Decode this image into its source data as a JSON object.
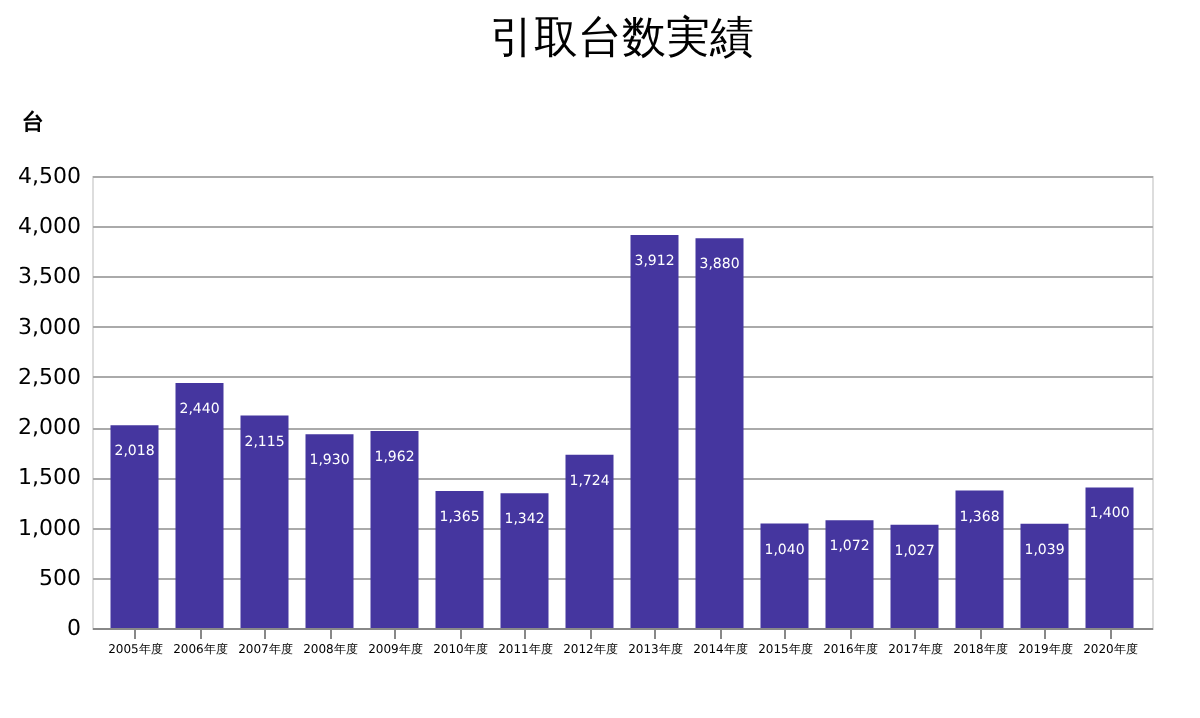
{
  "chart_data": {
    "type": "bar",
    "title": "引取台数実績",
    "ylabel": "台",
    "categories": [
      "2005年度",
      "2006年度",
      "2007年度",
      "2008年度",
      "2009年度",
      "2010年度",
      "2011年度",
      "2012年度",
      "2013年度",
      "2014年度",
      "2015年度",
      "2016年度",
      "2017年度",
      "2018年度",
      "2019年度",
      "2020年度"
    ],
    "values": [
      2018,
      2440,
      2115,
      1930,
      1962,
      1365,
      1342,
      1724,
      3912,
      3880,
      1040,
      1072,
      1027,
      1368,
      1039,
      1400
    ],
    "value_labels": [
      "2,018",
      "2,440",
      "2,115",
      "1,930",
      "1,962",
      "1,365",
      "1,342",
      "1,724",
      "3,912",
      "3,880",
      "1,040",
      "1,072",
      "1,027",
      "1,368",
      "1,039",
      "1,400"
    ],
    "color": "#45369f",
    "ylim": [
      0,
      4500
    ],
    "yticks": [
      0,
      {
        "value": 500,
        "label": "500"
      },
      {
        "value": 1000,
        "label": "1,000"
      },
      {
        "value": 1500,
        "label": "1,500"
      },
      {
        "value": 2000,
        "label": "2,000"
      },
      {
        "value": 2500,
        "label": "2,500"
      },
      {
        "value": 3000,
        "label": "3,000"
      },
      {
        "value": 3500,
        "label": "3,500"
      },
      {
        "value": 4000,
        "label": "4,000"
      },
      {
        "value": 4500,
        "label": "4,500"
      }
    ],
    "grid": "y"
  }
}
